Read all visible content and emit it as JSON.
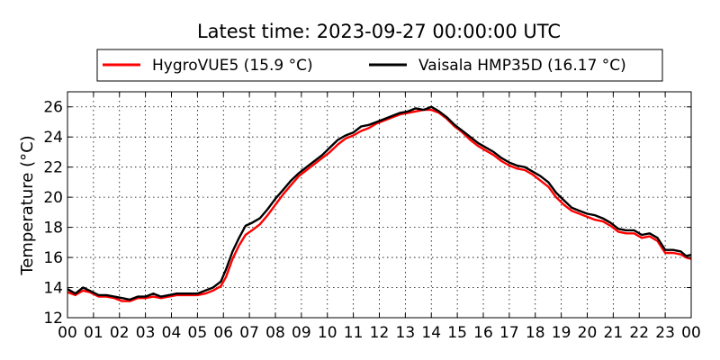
{
  "chart_data": {
    "type": "line",
    "title": "Latest time: 2023-09-27 00:00:00 UTC",
    "xlabel": "",
    "ylabel": "Temperature (°C)",
    "xlim": [
      0,
      24
    ],
    "ylim": [
      12,
      27
    ],
    "grid": true,
    "legend_position": "top-center",
    "x_tick_values": [
      0,
      1,
      2,
      3,
      4,
      5,
      6,
      7,
      8,
      9,
      10,
      11,
      12,
      13,
      14,
      15,
      16,
      17,
      18,
      19,
      20,
      21,
      22,
      23,
      24
    ],
    "x_tick_labels": [
      "00",
      "01",
      "02",
      "03",
      "04",
      "05",
      "06",
      "07",
      "08",
      "09",
      "10",
      "11",
      "12",
      "13",
      "14",
      "15",
      "16",
      "17",
      "18",
      "19",
      "20",
      "21",
      "22",
      "23",
      "00"
    ],
    "y_ticks": [
      12,
      14,
      16,
      18,
      20,
      22,
      24,
      26
    ],
    "series": [
      {
        "name": "HygroVUE5 (15.9 °C)",
        "color": "#ff0000",
        "points": [
          [
            0,
            13.7
          ],
          [
            0.3,
            13.5
          ],
          [
            0.6,
            13.8
          ],
          [
            0.85,
            13.7
          ],
          [
            1.2,
            13.4
          ],
          [
            1.5,
            13.4
          ],
          [
            1.8,
            13.3
          ],
          [
            2.1,
            13.1
          ],
          [
            2.4,
            13.1
          ],
          [
            2.7,
            13.3
          ],
          [
            3,
            13.3
          ],
          [
            3.3,
            13.4
          ],
          [
            3.6,
            13.3
          ],
          [
            3.9,
            13.4
          ],
          [
            4.2,
            13.5
          ],
          [
            4.6,
            13.5
          ],
          [
            5,
            13.5
          ],
          [
            5.3,
            13.6
          ],
          [
            5.6,
            13.8
          ],
          [
            5.9,
            14.1
          ],
          [
            6.1,
            14.7
          ],
          [
            6.35,
            15.9
          ],
          [
            6.6,
            16.8
          ],
          [
            6.85,
            17.5
          ],
          [
            7.1,
            17.8
          ],
          [
            7.4,
            18.2
          ],
          [
            7.7,
            18.8
          ],
          [
            8,
            19.5
          ],
          [
            8.3,
            20.2
          ],
          [
            8.6,
            20.8
          ],
          [
            8.9,
            21.4
          ],
          [
            9.2,
            21.8
          ],
          [
            9.5,
            22.2
          ],
          [
            9.8,
            22.6
          ],
          [
            10.1,
            23.0
          ],
          [
            10.4,
            23.5
          ],
          [
            10.7,
            23.9
          ],
          [
            11,
            24.1
          ],
          [
            11.3,
            24.4
          ],
          [
            11.6,
            24.6
          ],
          [
            11.9,
            24.9
          ],
          [
            12.2,
            25.1
          ],
          [
            12.5,
            25.3
          ],
          [
            12.8,
            25.5
          ],
          [
            13.1,
            25.6
          ],
          [
            13.4,
            25.7
          ],
          [
            13.7,
            25.8
          ],
          [
            14,
            25.8
          ],
          [
            14.3,
            25.6
          ],
          [
            14.6,
            25.2
          ],
          [
            14.9,
            24.7
          ],
          [
            15.2,
            24.3
          ],
          [
            15.5,
            23.8
          ],
          [
            15.8,
            23.4
          ],
          [
            16.1,
            23.1
          ],
          [
            16.4,
            22.8
          ],
          [
            16.7,
            22.4
          ],
          [
            17,
            22.1
          ],
          [
            17.3,
            21.9
          ],
          [
            17.6,
            21.8
          ],
          [
            17.9,
            21.5
          ],
          [
            18.2,
            21.1
          ],
          [
            18.5,
            20.7
          ],
          [
            18.8,
            20.0
          ],
          [
            19.1,
            19.5
          ],
          [
            19.4,
            19.1
          ],
          [
            19.7,
            18.9
          ],
          [
            20,
            18.7
          ],
          [
            20.3,
            18.5
          ],
          [
            20.6,
            18.4
          ],
          [
            20.9,
            18.1
          ],
          [
            21.2,
            17.7
          ],
          [
            21.5,
            17.6
          ],
          [
            21.8,
            17.6
          ],
          [
            22.1,
            17.3
          ],
          [
            22.4,
            17.4
          ],
          [
            22.7,
            17.1
          ],
          [
            23,
            16.3
          ],
          [
            23.3,
            16.3
          ],
          [
            23.6,
            16.2
          ],
          [
            23.8,
            16.0
          ],
          [
            24,
            15.9
          ]
        ]
      },
      {
        "name": "Vaisala HMP35D (16.17 °C)",
        "color": "#000000",
        "points": [
          [
            0,
            13.9
          ],
          [
            0.3,
            13.6
          ],
          [
            0.6,
            14.0
          ],
          [
            0.85,
            13.8
          ],
          [
            1.2,
            13.5
          ],
          [
            1.5,
            13.5
          ],
          [
            1.8,
            13.4
          ],
          [
            2.1,
            13.3
          ],
          [
            2.4,
            13.2
          ],
          [
            2.7,
            13.4
          ],
          [
            3,
            13.4
          ],
          [
            3.3,
            13.6
          ],
          [
            3.6,
            13.4
          ],
          [
            3.9,
            13.5
          ],
          [
            4.2,
            13.6
          ],
          [
            4.6,
            13.6
          ],
          [
            5,
            13.6
          ],
          [
            5.3,
            13.8
          ],
          [
            5.6,
            14.0
          ],
          [
            5.9,
            14.4
          ],
          [
            6.1,
            15.2
          ],
          [
            6.35,
            16.4
          ],
          [
            6.6,
            17.3
          ],
          [
            6.85,
            18.1
          ],
          [
            7.1,
            18.3
          ],
          [
            7.4,
            18.6
          ],
          [
            7.7,
            19.2
          ],
          [
            8,
            19.9
          ],
          [
            8.3,
            20.5
          ],
          [
            8.6,
            21.1
          ],
          [
            8.9,
            21.6
          ],
          [
            9.2,
            22.0
          ],
          [
            9.5,
            22.4
          ],
          [
            9.8,
            22.8
          ],
          [
            10.1,
            23.3
          ],
          [
            10.4,
            23.8
          ],
          [
            10.7,
            24.1
          ],
          [
            11,
            24.3
          ],
          [
            11.3,
            24.7
          ],
          [
            11.6,
            24.8
          ],
          [
            11.9,
            25.0
          ],
          [
            12.2,
            25.2
          ],
          [
            12.5,
            25.4
          ],
          [
            12.8,
            25.6
          ],
          [
            13.1,
            25.7
          ],
          [
            13.4,
            25.9
          ],
          [
            13.7,
            25.8
          ],
          [
            14,
            26.0
          ],
          [
            14.3,
            25.7
          ],
          [
            14.6,
            25.3
          ],
          [
            14.9,
            24.8
          ],
          [
            15.2,
            24.4
          ],
          [
            15.5,
            24.0
          ],
          [
            15.8,
            23.6
          ],
          [
            16.1,
            23.3
          ],
          [
            16.4,
            23.0
          ],
          [
            16.7,
            22.6
          ],
          [
            17,
            22.3
          ],
          [
            17.3,
            22.1
          ],
          [
            17.6,
            22.0
          ],
          [
            17.9,
            21.7
          ],
          [
            18.2,
            21.4
          ],
          [
            18.5,
            21.0
          ],
          [
            18.8,
            20.3
          ],
          [
            19.1,
            19.8
          ],
          [
            19.4,
            19.3
          ],
          [
            19.7,
            19.1
          ],
          [
            20,
            18.9
          ],
          [
            20.3,
            18.8
          ],
          [
            20.6,
            18.6
          ],
          [
            20.9,
            18.3
          ],
          [
            21.2,
            17.9
          ],
          [
            21.5,
            17.8
          ],
          [
            21.8,
            17.8
          ],
          [
            22.1,
            17.5
          ],
          [
            22.4,
            17.6
          ],
          [
            22.7,
            17.3
          ],
          [
            23,
            16.5
          ],
          [
            23.3,
            16.5
          ],
          [
            23.6,
            16.4
          ],
          [
            23.8,
            16.1
          ],
          [
            24,
            16.17
          ]
        ]
      }
    ]
  }
}
